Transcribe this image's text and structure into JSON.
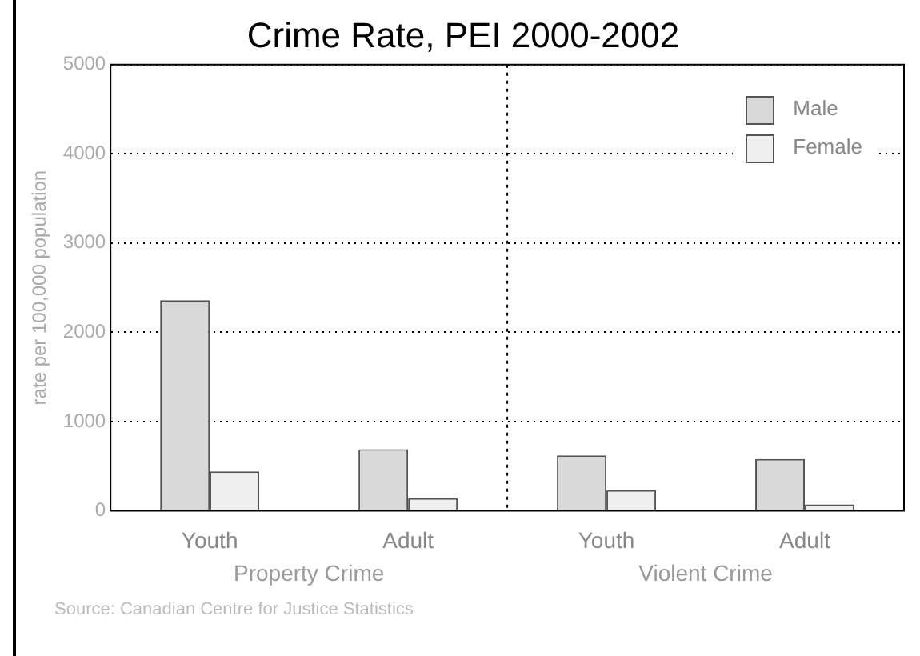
{
  "chart_data": {
    "type": "bar",
    "title": "Crime Rate, PEI 2000-2002",
    "ylabel": "rate per 100,000 population",
    "categories": [
      "Youth",
      "Adult",
      "Youth",
      "Adult"
    ],
    "series": [
      {
        "name": "Male",
        "color": "#d9d9d9",
        "values": [
          2360,
          690,
          620,
          580
        ]
      },
      {
        "name": "Female",
        "color": "#eeeeee",
        "values": [
          440,
          140,
          230,
          70
        ]
      }
    ],
    "ylim": [
      0,
      5000
    ],
    "yticks": [
      0,
      1000,
      2000,
      3000,
      4000,
      5000
    ],
    "grid": "y",
    "legend": "top right",
    "annotations": [
      "Property Crime",
      "Violent Crime",
      "Source: Canadian Centre for Justice Statistics"
    ]
  }
}
